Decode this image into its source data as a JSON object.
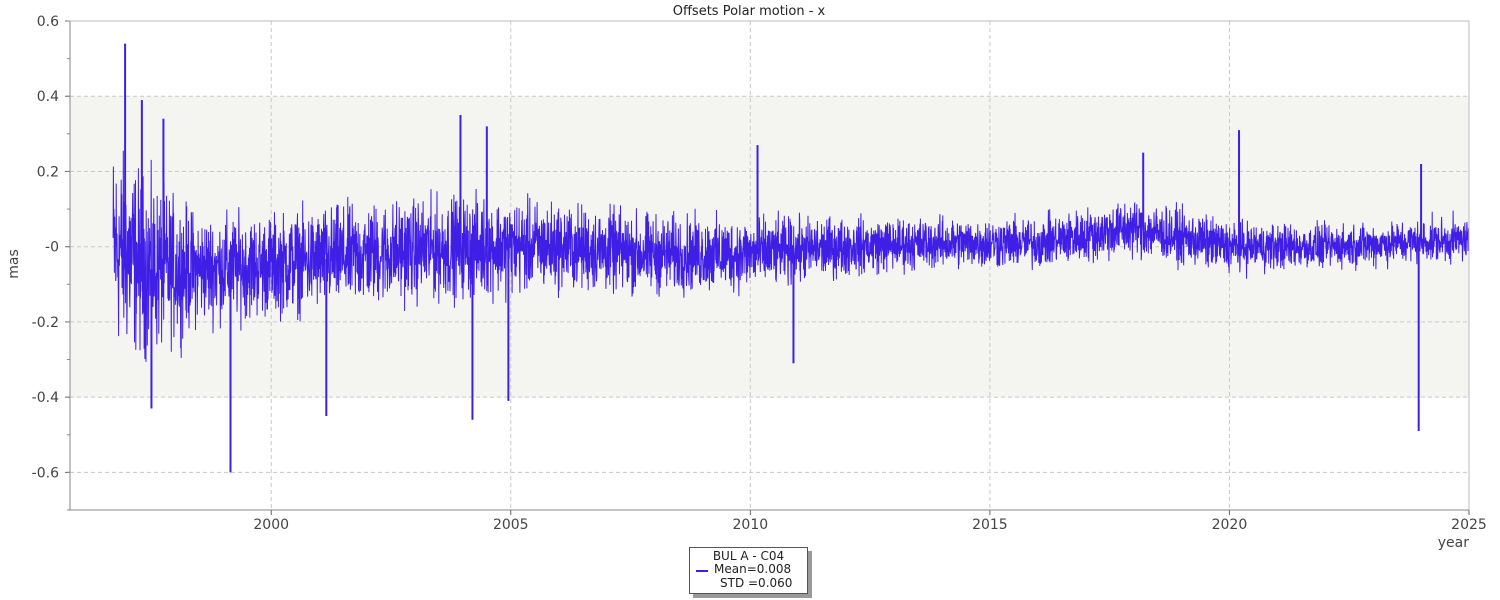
{
  "chart_data": {
    "type": "line",
    "title": "Offsets Polar motion - x",
    "ylabel": "mas",
    "xlabel": "year",
    "xlim": [
      1995.8,
      2025.0
    ],
    "ylim": [
      -0.7,
      0.6
    ],
    "x_ticks": [
      2000,
      2005,
      2010,
      2015,
      2020,
      2025
    ],
    "y_ticks": [
      0.6,
      0.4,
      0.2,
      0.0,
      -0.2,
      -0.4,
      -0.6
    ],
    "y_tick_labels": [
      "0.6",
      "0.4",
      "0.2",
      "-0",
      "-0.2",
      "-0.4",
      "-0.6"
    ],
    "grid": true,
    "shaded_band": [
      -0.4,
      0.4
    ],
    "color": "#3f1fe6",
    "legend": {
      "position": "bottom-center",
      "title": "BUL A - C04",
      "mean": "Mean=0.008",
      "std": "STD =0.060"
    },
    "series": [
      {
        "x_range": [
          1996.7,
          2025.0
        ],
        "envelope_years": [
          1996.7,
          1997.5,
          1998.5,
          2000,
          2002,
          2004,
          2006,
          2008,
          2010,
          2012,
          2014,
          2016,
          2018,
          2020,
          2022,
          2025.0
        ],
        "envelope_half_width": [
          0.28,
          0.24,
          0.15,
          0.14,
          0.14,
          0.14,
          0.12,
          0.11,
          0.1,
          0.08,
          0.07,
          0.07,
          0.08,
          0.07,
          0.06,
          0.06
        ],
        "envelope_center": [
          0.0,
          -0.06,
          -0.06,
          -0.05,
          -0.02,
          0.0,
          0.0,
          -0.02,
          -0.02,
          0.0,
          0.01,
          0.01,
          0.05,
          0.0,
          0.0,
          0.02
        ],
        "spikes": [
          {
            "x": 1996.95,
            "y": 0.54
          },
          {
            "x": 1997.3,
            "y": 0.39
          },
          {
            "x": 1997.5,
            "y": -0.43
          },
          {
            "x": 1997.75,
            "y": 0.34
          },
          {
            "x": 1999.15,
            "y": -0.6
          },
          {
            "x": 2001.15,
            "y": -0.45
          },
          {
            "x": 2003.95,
            "y": 0.35
          },
          {
            "x": 2004.2,
            "y": -0.46
          },
          {
            "x": 2004.5,
            "y": 0.32
          },
          {
            "x": 2004.95,
            "y": -0.41
          },
          {
            "x": 2010.15,
            "y": 0.27
          },
          {
            "x": 2010.9,
            "y": -0.31
          },
          {
            "x": 2018.2,
            "y": 0.25
          },
          {
            "x": 2020.2,
            "y": 0.31
          },
          {
            "x": 2023.95,
            "y": -0.49
          },
          {
            "x": 2024.0,
            "y": 0.22
          }
        ]
      }
    ]
  }
}
